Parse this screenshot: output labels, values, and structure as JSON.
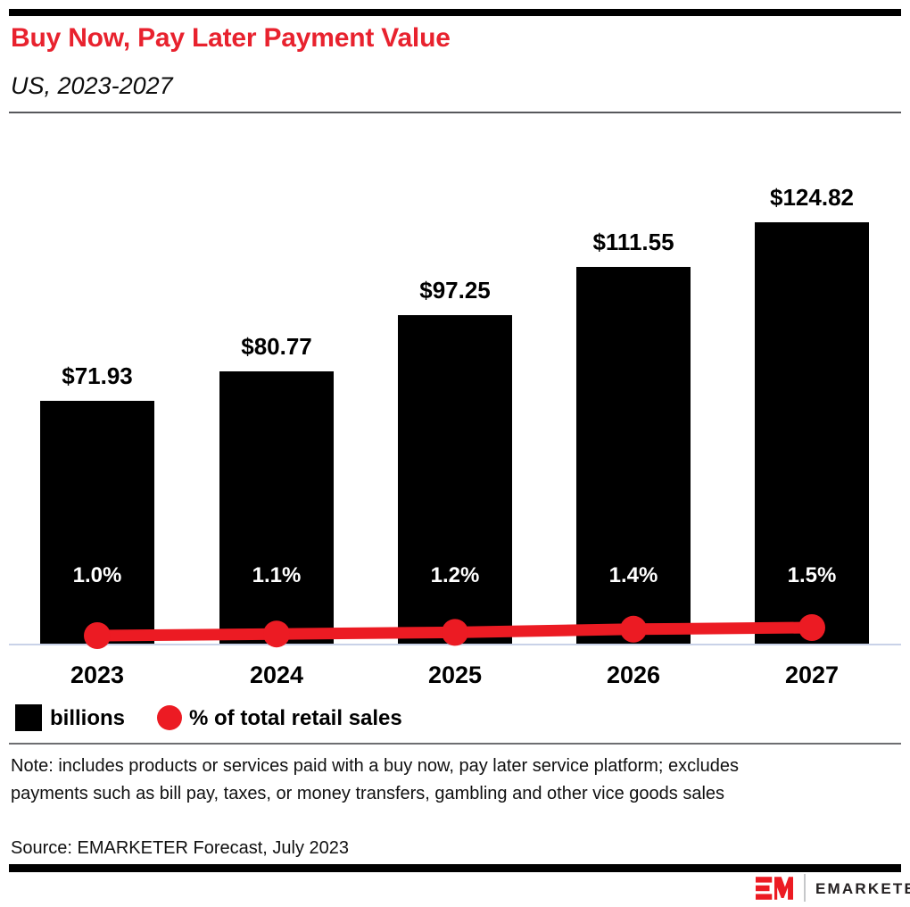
{
  "header": {
    "title": "Buy Now, Pay Later Payment Value",
    "subtitle": "US, 2023-2027"
  },
  "chart_data": {
    "type": "bar",
    "categories": [
      "2023",
      "2024",
      "2025",
      "2026",
      "2027"
    ],
    "series": [
      {
        "name": "billions",
        "type": "bar",
        "color": "#000000",
        "values": [
          71.93,
          80.77,
          97.25,
          111.55,
          124.82
        ],
        "labels": [
          "$71.93",
          "$80.77",
          "$97.25",
          "$111.55",
          "$124.82"
        ]
      },
      {
        "name": "% of total retail sales",
        "type": "line",
        "axis": "secondary",
        "color": "#EC1B23",
        "values": [
          1.0,
          1.1,
          1.2,
          1.4,
          1.5
        ],
        "labels": [
          "1.0%",
          "1.1%",
          "1.2%",
          "1.4%",
          "1.5%"
        ]
      }
    ],
    "title": "Buy Now, Pay Later Payment Value",
    "subtitle": "US, 2023-2027",
    "xlabel": "",
    "ylabel": "",
    "grid": false,
    "axes_hidden": true,
    "legend_position": "bottom"
  },
  "legend": {
    "items": [
      {
        "label": "billions",
        "swatch": "square",
        "color": "#000000"
      },
      {
        "label": "% of total retail sales",
        "swatch": "circle",
        "color": "#EC1B23"
      }
    ]
  },
  "footnote": {
    "note": "Note: includes products or services paid with a buy now, pay later service platform; excludes payments such as bill pay, taxes, or money transfers, gambling and other vice goods sales",
    "source": "Source: EMARKETER Forecast, July 2023"
  },
  "branding": {
    "logo_text": "EMARKETER",
    "logo_mark": "EM-monogram-icon",
    "brand_red": "#EC1B23"
  },
  "colors": {
    "title_red": "#E8222E",
    "bar_black": "#000000",
    "line_red": "#EC1B23",
    "baseline_gray_blue": "#C9D2E8",
    "rule_gray": "#57585C"
  }
}
